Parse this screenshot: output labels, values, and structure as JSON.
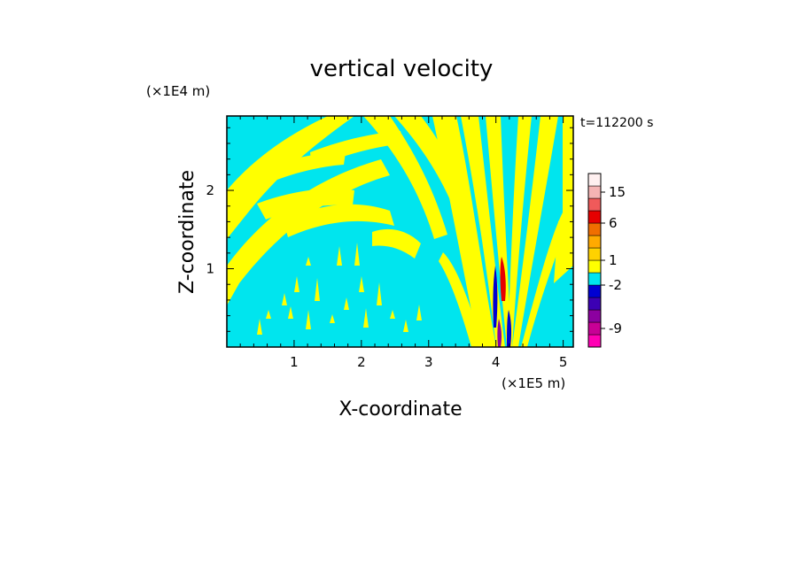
{
  "chart_data": {
    "type": "heatmap",
    "title": "vertical velocity",
    "xlabel": "X-coordinate",
    "ylabel": "Z-coordinate",
    "x_unit": "(×1E5 m)",
    "y_unit": "(×1E4 m)",
    "time_label": "t=112200 s",
    "xlim": [
      0,
      5.15
    ],
    "ylim": [
      0,
      2.95
    ],
    "x_ticks": [
      1,
      2,
      3,
      4,
      5
    ],
    "y_ticks": [
      1,
      2
    ],
    "x_minor_step": 0.2,
    "y_minor_step": 0.2,
    "background_fill": "#00e5ee",
    "colorbar": {
      "levels": [
        {
          "color": "#ff00b4"
        },
        {
          "color": "#c80096"
        },
        {
          "color": "#8c00a0"
        },
        {
          "color": "#3c00b4"
        },
        {
          "color": "#0000d2"
        },
        {
          "color": "#00e5ee"
        },
        {
          "color": "#ffff00"
        },
        {
          "color": "#ffd200"
        },
        {
          "color": "#ffaa00"
        },
        {
          "color": "#f06e00"
        },
        {
          "color": "#e60000"
        },
        {
          "color": "#f05a5a"
        },
        {
          "color": "#f5b4b4"
        },
        {
          "color": "#fff0f0"
        }
      ],
      "labels": [
        {
          "text": "-9",
          "level": 1.5
        },
        {
          "text": "-2",
          "level": 5
        },
        {
          "text": "1",
          "level": 7
        },
        {
          "text": "6",
          "level": 10
        },
        {
          "text": "15",
          "level": 12.5
        }
      ]
    },
    "fields": {
      "updraft_color": "#ffff00",
      "strong_updraft_color": "#e60000",
      "downdraft_color": "#0000d2",
      "strong_downdraft_color": "#8c00a0",
      "mountain_center_x": 4.1
    }
  }
}
